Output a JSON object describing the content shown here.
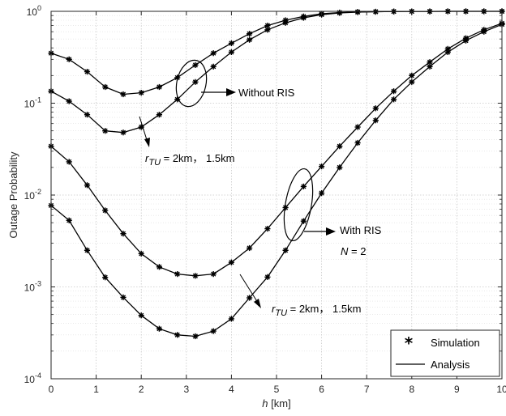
{
  "chart_data": {
    "type": "line",
    "xlabel": "h [km]",
    "xlabel_var": "h",
    "xlabel_unit": " [km]",
    "ylabel": "Outage Probability",
    "x_range": [
      0,
      10
    ],
    "y_range": [
      0.0001,
      1
    ],
    "y_scale": "log",
    "grid": true,
    "legend_position": "bottom-right",
    "x_ticks": [
      "0",
      "1",
      "2",
      "3",
      "4",
      "5",
      "6",
      "7",
      "8",
      "9",
      "10"
    ],
    "y_ticks": [
      {
        "base": "10",
        "exp": "-4",
        "value": 0.0001
      },
      {
        "base": "10",
        "exp": "-3",
        "value": 0.001
      },
      {
        "base": "10",
        "exp": "-2",
        "value": 0.01
      },
      {
        "base": "10",
        "exp": "-1",
        "value": 0.1
      },
      {
        "base": "10",
        "exp": "0",
        "value": 1
      }
    ],
    "x": [
      0,
      0.4,
      0.8,
      1.2,
      1.6,
      2.0,
      2.4,
      2.8,
      3.2,
      3.6,
      4.0,
      4.4,
      4.8,
      5.2,
      5.6,
      6.0,
      6.4,
      6.8,
      7.2,
      7.6,
      8.0,
      8.4,
      8.8,
      9.2,
      9.6,
      10.0
    ],
    "series": [
      {
        "values": [
          0.35,
          0.3,
          0.22,
          0.15,
          0.125,
          0.13,
          0.15,
          0.19,
          0.26,
          0.35,
          0.45,
          0.57,
          0.7,
          0.8,
          0.88,
          0.94,
          0.97,
          0.985,
          0.99,
          0.995,
          0.997,
          0.998,
          0.999,
          0.999,
          1.0,
          1.0
        ]
      },
      {
        "values": [
          0.135,
          0.105,
          0.075,
          0.05,
          0.048,
          0.055,
          0.075,
          0.11,
          0.17,
          0.25,
          0.36,
          0.49,
          0.63,
          0.75,
          0.85,
          0.92,
          0.96,
          0.98,
          0.99,
          0.995,
          0.997,
          0.998,
          0.999,
          0.999,
          1.0,
          1.0
        ]
      },
      {
        "values": [
          0.034,
          0.023,
          0.0128,
          0.0068,
          0.0038,
          0.0023,
          0.00165,
          0.00138,
          0.00132,
          0.00138,
          0.00185,
          0.00265,
          0.0043,
          0.0073,
          0.0124,
          0.0205,
          0.034,
          0.055,
          0.088,
          0.135,
          0.2,
          0.28,
          0.39,
          0.51,
          0.63,
          0.74
        ]
      },
      {
        "values": [
          0.0077,
          0.0053,
          0.0025,
          0.00127,
          0.00077,
          0.00049,
          0.00035,
          0.0003,
          0.00029,
          0.00033,
          0.00045,
          0.00076,
          0.00128,
          0.0025,
          0.0052,
          0.0105,
          0.02,
          0.037,
          0.065,
          0.11,
          0.17,
          0.25,
          0.36,
          0.48,
          0.6,
          0.72
        ]
      }
    ],
    "annotations": {
      "without_ris": "Without RIS",
      "with_ris": "With RIS",
      "n_var": "N",
      "n_value": " = 2",
      "r_var": "r",
      "r_sub": "TU",
      "r_value": " = 2km， 1.5km"
    },
    "legend": {
      "simulation": "Simulation",
      "analysis": "Analysis"
    }
  }
}
